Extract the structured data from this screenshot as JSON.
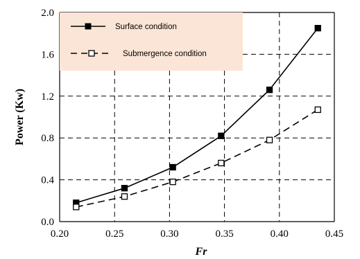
{
  "chart_data": {
    "type": "line",
    "xlabel": "Fr",
    "ylabel": "Power (Kw)",
    "xlim": [
      0.2,
      0.45
    ],
    "ylim": [
      0.0,
      2.0
    ],
    "xticks": [
      "0.20",
      "0.25",
      "0.30",
      "0.35",
      "0.40",
      "0.45"
    ],
    "yticks": [
      "0.0",
      "0.4",
      "0.8",
      "1.2",
      "1.6",
      "2.0"
    ],
    "grid": true,
    "legend_position": "top-left",
    "series": [
      {
        "name": "Surface condition",
        "style": "solid",
        "marker": "filled-square",
        "color": "#000000",
        "x": [
          0.215,
          0.259,
          0.303,
          0.347,
          0.391,
          0.435
        ],
        "y": [
          0.18,
          0.32,
          0.52,
          0.82,
          1.26,
          1.85
        ]
      },
      {
        "name": "Submergence condition",
        "style": "dashed",
        "marker": "open-square",
        "color": "#000000",
        "x": [
          0.215,
          0.259,
          0.303,
          0.347,
          0.391,
          0.435
        ],
        "y": [
          0.14,
          0.24,
          0.38,
          0.56,
          0.78,
          1.07
        ]
      }
    ],
    "legend_background": "#fbe5d6"
  }
}
